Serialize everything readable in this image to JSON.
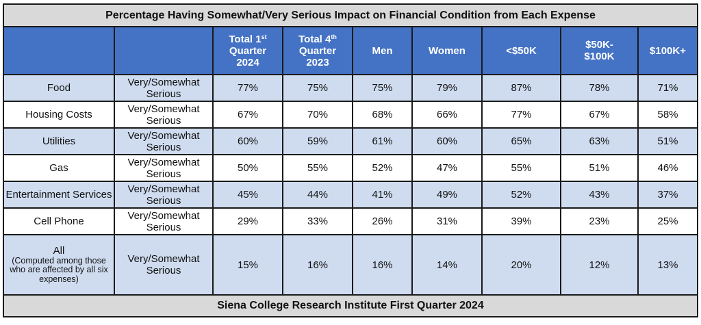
{
  "title": "Percentage Having Somewhat/Very Serious Impact on Financial Condition from Each Expense",
  "columns": [
    {
      "line1": "Total 1",
      "sup": "st",
      "line2": "Quarter",
      "line3": "2024"
    },
    {
      "line1": "Total 4",
      "sup": "th",
      "line2": "Quarter",
      "line3": "2023"
    },
    {
      "line1": "Men",
      "sup": "",
      "line2": "",
      "line3": ""
    },
    {
      "line1": "Women",
      "sup": "",
      "line2": "",
      "line3": ""
    },
    {
      "line1": "<$50K",
      "sup": "",
      "line2": "",
      "line3": ""
    },
    {
      "line1": "$50K-",
      "sup": "",
      "line2": "$100K",
      "line3": ""
    },
    {
      "line1": "$100K+",
      "sup": "",
      "line2": "",
      "line3": ""
    }
  ],
  "rows": [
    {
      "label": "Food",
      "measure1": "Very/Somewhat",
      "measure2": "Serious",
      "values": [
        "77%",
        "75%",
        "75%",
        "79%",
        "87%",
        "78%",
        "71%"
      ]
    },
    {
      "label": "Housing Costs",
      "measure1": "Very/Somewhat",
      "measure2": "Serious",
      "values": [
        "67%",
        "70%",
        "68%",
        "66%",
        "77%",
        "67%",
        "58%"
      ]
    },
    {
      "label": "Utilities",
      "measure1": "Very/Somewhat",
      "measure2": "Serious",
      "values": [
        "60%",
        "59%",
        "61%",
        "60%",
        "65%",
        "63%",
        "51%"
      ]
    },
    {
      "label": "Gas",
      "measure1": "Very/Somewhat",
      "measure2": "Serious",
      "values": [
        "50%",
        "55%",
        "52%",
        "47%",
        "55%",
        "51%",
        "46%"
      ]
    },
    {
      "label": "Entertainment Services",
      "measure1": "Very/Somewhat",
      "measure2": "Serious",
      "values": [
        "45%",
        "44%",
        "41%",
        "49%",
        "52%",
        "43%",
        "37%"
      ]
    },
    {
      "label": "Cell Phone",
      "measure1": "Very/Somewhat",
      "measure2": "Serious",
      "values": [
        "29%",
        "33%",
        "26%",
        "31%",
        "39%",
        "23%",
        "25%"
      ]
    }
  ],
  "all_row": {
    "label": "All",
    "note": "(Computed among those who are affected by all six expenses)",
    "measure1": "Very/Somewhat",
    "measure2": "Serious",
    "values": [
      "15%",
      "16%",
      "16%",
      "14%",
      "20%",
      "12%",
      "13%"
    ]
  },
  "footer": "Siena College Research Institute First Quarter 2024"
}
